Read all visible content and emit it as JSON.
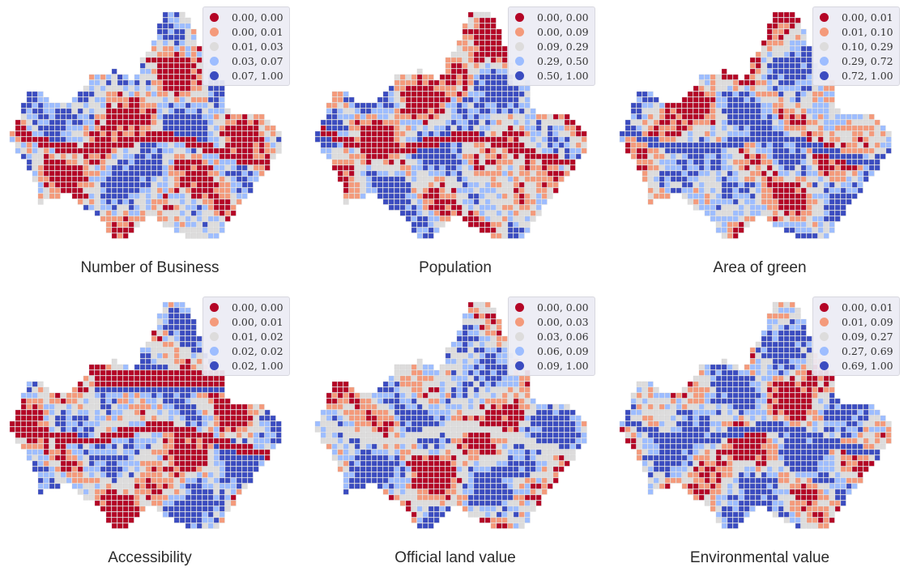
{
  "palette": [
    "#b40426",
    "#f49a7b",
    "#dddcdc",
    "#9dbdff",
    "#3b4cc0"
  ],
  "panels": [
    {
      "title": "Number of Business",
      "legend": [
        "0.00, 0.00",
        "0.00, 0.01",
        "0.01, 0.03",
        "0.03, 0.07",
        "0.07, 1.00"
      ]
    },
    {
      "title": "Population",
      "legend": [
        "0.00, 0.00",
        "0.00, 0.09",
        "0.09, 0.29",
        "0.29, 0.50",
        "0.50, 1.00"
      ]
    },
    {
      "title": "Area of green",
      "legend": [
        "0.00, 0.01",
        "0.01, 0.10",
        "0.10, 0.29",
        "0.29, 0.72",
        "0.72, 1.00"
      ]
    },
    {
      "title": "Accessibility",
      "legend": [
        "0.00, 0.00",
        "0.00, 0.01",
        "0.01, 0.02",
        "0.02, 0.02",
        "0.02, 1.00"
      ]
    },
    {
      "title": "Official land value",
      "legend": [
        "0.00, 0.00",
        "0.00, 0.03",
        "0.03, 0.06",
        "0.06, 0.09",
        "0.09, 1.00"
      ]
    },
    {
      "title": "Environmental value",
      "legend": [
        "0.00, 0.01",
        "0.01, 0.09",
        "0.09, 0.27",
        "0.27, 0.69",
        "0.69, 1.00"
      ]
    }
  ]
}
